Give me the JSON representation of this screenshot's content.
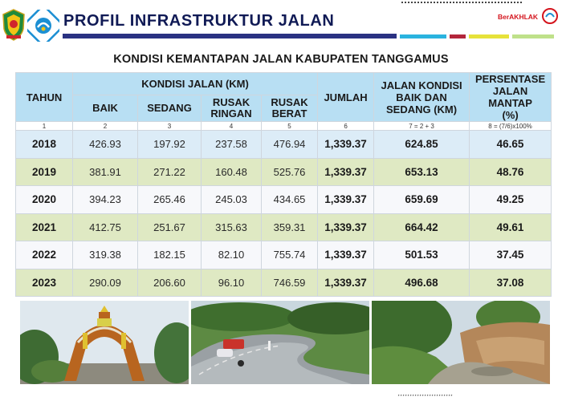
{
  "header": {
    "title": "PROFIL INFRASTRUKTUR JALAN",
    "brand": "BerAKHLAK",
    "colors": {
      "title": "#101a55",
      "bar": "#2a3282",
      "brand": "#d4141d"
    }
  },
  "subtitle": "KONDISI KEMANTAPAN JALAN KABUPATEN TANGGAMUS",
  "table": {
    "headers": {
      "tahun": "TAHUN",
      "kondisi_group": "KONDISI JALAN (KM)",
      "baik": "BAIK",
      "sedang": "SEDANG",
      "rusak_ringan_1": "RUSAK",
      "rusak_ringan_2": "RINGAN",
      "rusak_berat_1": "RUSAK",
      "rusak_berat_2": "BERAT",
      "jumlah": "JUMLAH",
      "baik_sedang_1": "JALAN KONDISI",
      "baik_sedang_2": "BAIK DAN",
      "baik_sedang_3": "SEDANG (KM)",
      "persen_1": "PERSENTASE",
      "persen_2": "JALAN MANTAP",
      "persen_3": "(%)"
    },
    "numbering": [
      "1",
      "2",
      "3",
      "4",
      "5",
      "6",
      "7 = 2 + 3",
      "8 = (7/6)x100%"
    ],
    "rows": [
      {
        "tahun": "2018",
        "baik": "426.93",
        "sedang": "197.92",
        "rusak_ringan": "237.58",
        "rusak_berat": "476.94",
        "jumlah": "1,339.37",
        "baik_sedang": "624.85",
        "persen": "46.65"
      },
      {
        "tahun": "2019",
        "baik": "381.91",
        "sedang": "271.22",
        "rusak_ringan": "160.48",
        "rusak_berat": "525.76",
        "jumlah": "1,339.37",
        "baik_sedang": "653.13",
        "persen": "48.76"
      },
      {
        "tahun": "2020",
        "baik": "394.23",
        "sedang": "265.46",
        "rusak_ringan": "245.03",
        "rusak_berat": "434.65",
        "jumlah": "1,339.37",
        "baik_sedang": "659.69",
        "persen": "49.25"
      },
      {
        "tahun": "2021",
        "baik": "412.75",
        "sedang": "251.67",
        "rusak_ringan": "315.63",
        "rusak_berat": "359.31",
        "jumlah": "1,339.37",
        "baik_sedang": "664.42",
        "persen": "49.61"
      },
      {
        "tahun": "2022",
        "baik": "319.38",
        "sedang": "182.15",
        "rusak_ringan": "82.10",
        "rusak_berat": "755.74",
        "jumlah": "1,339.37",
        "baik_sedang": "501.53",
        "persen": "37.45"
      },
      {
        "tahun": "2023",
        "baik": "290.09",
        "sedang": "206.60",
        "rusak_ringan": "96.10",
        "rusak_berat": "746.59",
        "jumlah": "1,339.37",
        "baik_sedang": "496.68",
        "persen": "37.08"
      }
    ]
  },
  "photos": [
    "gateway-arch-photo",
    "winding-road-photo",
    "landslide-road-photo"
  ]
}
